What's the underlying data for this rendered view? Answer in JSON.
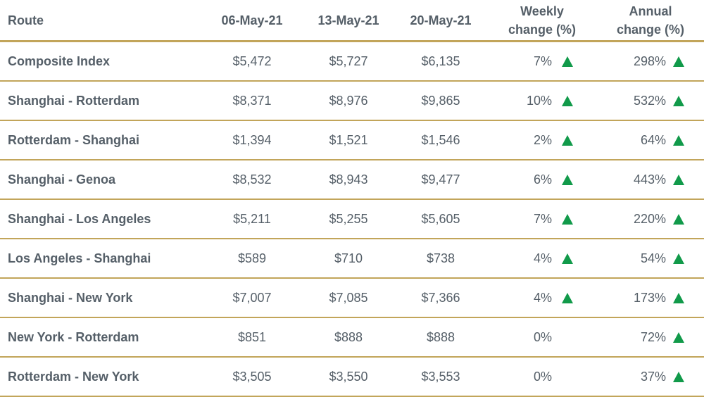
{
  "chart_data": {
    "type": "table",
    "columns": [
      "Route",
      "06-May-21",
      "13-May-21",
      "20-May-21",
      "Weekly change (%)",
      "Annual change (%)"
    ],
    "header": {
      "route": "Route",
      "d1": "06-May-21",
      "d2": "13-May-21",
      "d3": "20-May-21",
      "weekly_line1": "Weekly",
      "weekly_line2": "change (%)",
      "annual_line1": "Annual",
      "annual_line2": "change (%)"
    },
    "rows": [
      {
        "route": "Composite Index",
        "d1": "$5,472",
        "d2": "$5,727",
        "d3": "$6,135",
        "weekly": "7%",
        "weekly_up": true,
        "annual": "298%",
        "annual_up": true
      },
      {
        "route": "Shanghai - Rotterdam",
        "d1": "$8,371",
        "d2": "$8,976",
        "d3": "$9,865",
        "weekly": "10%",
        "weekly_up": true,
        "annual": "532%",
        "annual_up": true
      },
      {
        "route": "Rotterdam - Shanghai",
        "d1": "$1,394",
        "d2": "$1,521",
        "d3": "$1,546",
        "weekly": "2%",
        "weekly_up": true,
        "annual": "64%",
        "annual_up": true
      },
      {
        "route": "Shanghai - Genoa",
        "d1": "$8,532",
        "d2": "$8,943",
        "d3": "$9,477",
        "weekly": "6%",
        "weekly_up": true,
        "annual": "443%",
        "annual_up": true
      },
      {
        "route": "Shanghai - Los Angeles",
        "d1": "$5,211",
        "d2": "$5,255",
        "d3": "$5,605",
        "weekly": "7%",
        "weekly_up": true,
        "annual": "220%",
        "annual_up": true
      },
      {
        "route": "Los Angeles - Shanghai",
        "d1": "$589",
        "d2": "$710",
        "d3": "$738",
        "weekly": "4%",
        "weekly_up": true,
        "annual": "54%",
        "annual_up": true
      },
      {
        "route": "Shanghai - New York",
        "d1": "$7,007",
        "d2": "$7,085",
        "d3": "$7,366",
        "weekly": "4%",
        "weekly_up": true,
        "annual": "173%",
        "annual_up": true
      },
      {
        "route": "New York - Rotterdam",
        "d1": "$851",
        "d2": "$888",
        "d3": "$888",
        "weekly": "0%",
        "weekly_up": false,
        "annual": "72%",
        "annual_up": true
      },
      {
        "route": "Rotterdam - New York",
        "d1": "$3,505",
        "d2": "$3,550",
        "d3": "$3,553",
        "weekly": "0%",
        "weekly_up": false,
        "annual": "37%",
        "annual_up": true
      }
    ],
    "colors": {
      "text": "#555f68",
      "divider": "#c2a55a",
      "up_arrow": "#119a4a"
    },
    "up_icon": "triangle-up-icon"
  }
}
